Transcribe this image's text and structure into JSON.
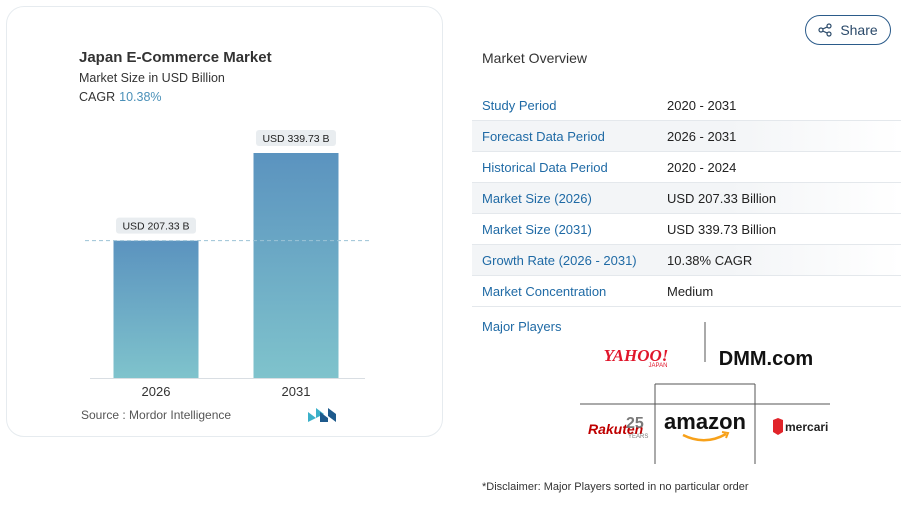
{
  "chart": {
    "title": "Japan E-Commerce Market",
    "subtitle": "Market Size in USD Billion",
    "cagr_label": "CAGR",
    "cagr_value": "10.38%",
    "source": "Source :  Mordor Intelligence"
  },
  "chart_data": {
    "type": "bar",
    "categories": [
      "2026",
      "2031"
    ],
    "values": [
      207.33,
      339.73
    ],
    "data_labels": [
      "USD 207.33 B",
      "USD 339.73 B"
    ],
    "title": "Japan E-Commerce Market",
    "ylabel": "Market Size in USD Billion",
    "ylim": [
      0,
      339.73
    ],
    "colors": {
      "bar_top": "#5b93bf",
      "bar_bottom": "#7fc3cc",
      "ref_line": "#9cc3d6"
    }
  },
  "share": {
    "label": "Share",
    "icon": "share-icon"
  },
  "overview": {
    "title": "Market Overview",
    "rows": [
      {
        "key": "Study Period",
        "value": "2020 - 2031"
      },
      {
        "key": "Forecast Data Period",
        "value": "2026 - 2031"
      },
      {
        "key": "Historical Data Period",
        "value": "2020 - 2024"
      },
      {
        "key": "Market Size (2026)",
        "value": "USD 207.33 Billion"
      },
      {
        "key": "Market Size (2031)",
        "value": "USD 339.73 Billion"
      },
      {
        "key": "Growth Rate (2026 - 2031)",
        "value": "10.38% CAGR"
      },
      {
        "key": "Market Concentration",
        "value": "Medium"
      }
    ],
    "players_label": "Major Players",
    "players": {
      "yahoo": "YAHOO!",
      "yahoo_sub": "JAPAN",
      "dmm": "DMM.com",
      "rakuten": "Rakuten",
      "rakuten_years": "25",
      "rakuten_years_sub": "YEARS",
      "amazon": "amazon",
      "mercari": "mercari"
    },
    "disclaimer": "*Disclaimer: Major Players sorted in no particular order"
  },
  "theme": {
    "accent": "#1f6aa5",
    "share_border": "#2b5b8a"
  }
}
